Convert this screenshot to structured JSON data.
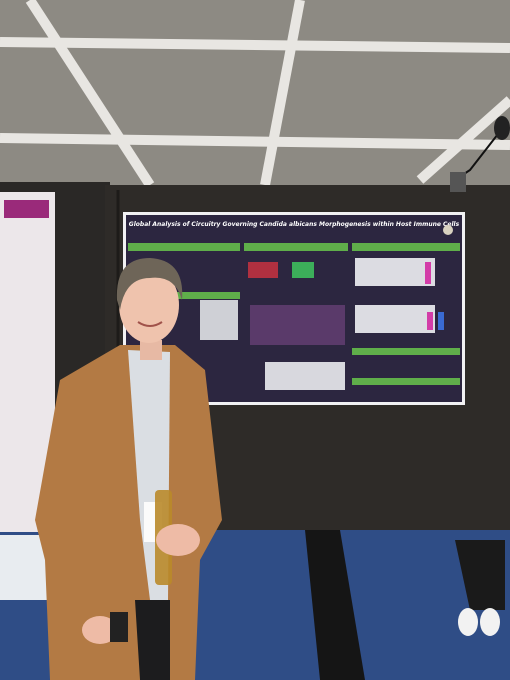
{
  "poster": {
    "title": "Global Analysis of Circuitry Governing Candida albicans Morphogenesis within Host Immune Cells"
  }
}
